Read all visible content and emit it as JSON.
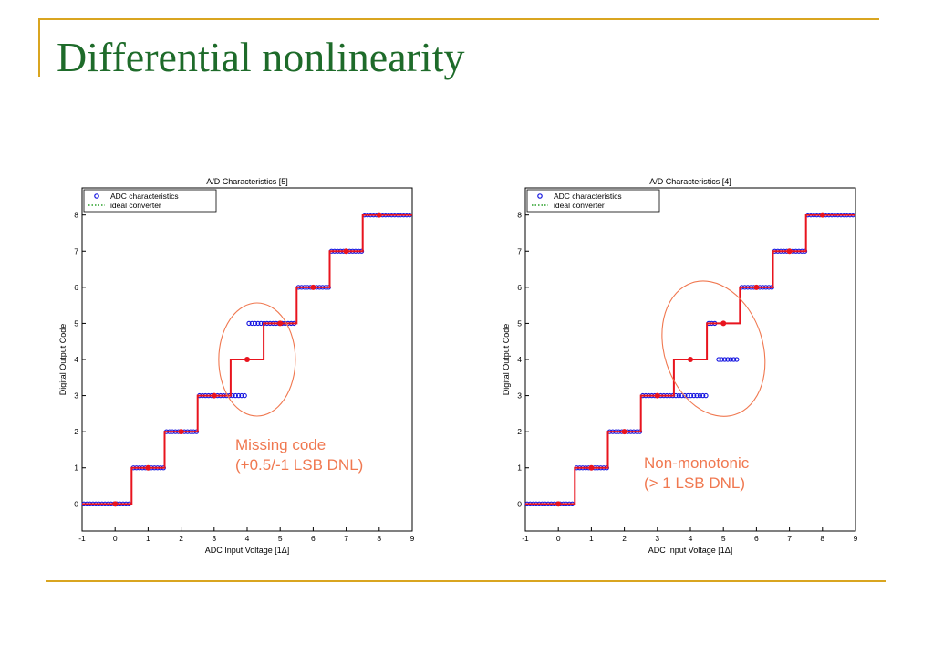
{
  "slide": {
    "title": "Differential nonlinearity"
  },
  "colors": {
    "title": "#1e6b2a",
    "rule": "#d9a520",
    "red": "#e8141e",
    "blue": "#1414e0",
    "green": "#2aa02a",
    "annotation": "#f07850"
  },
  "chart_data": [
    {
      "type": "line",
      "title": "A/D Characteristics [5]",
      "xlabel": "ADC Input Voltage  [1Δ]",
      "ylabel": "Digital Output Code",
      "xlim": [
        -1,
        9
      ],
      "ylim": [
        -0.75,
        8.75
      ],
      "xticks": [
        -1,
        0,
        1,
        2,
        3,
        4,
        5,
        6,
        7,
        8,
        9
      ],
      "yticks": [
        0,
        1,
        2,
        3,
        4,
        5,
        6,
        7,
        8
      ],
      "legend": {
        "placement": "top-left",
        "entries": [
          "ADC characteristics",
          "ideal converter"
        ]
      },
      "series": [
        {
          "name": "ADC characteristics",
          "marker": "o",
          "color": "blue",
          "segments": [
            [
              -1,
              0.5,
              0
            ],
            [
              0.5,
              1.5,
              1
            ],
            [
              1.5,
              2.5,
              2
            ],
            [
              2.5,
              4.0,
              3
            ],
            [
              4.0,
              5.5,
              5
            ],
            [
              5.5,
              6.5,
              6
            ],
            [
              6.5,
              7.5,
              7
            ],
            [
              7.5,
              9,
              8
            ]
          ]
        },
        {
          "name": "ideal converter",
          "color": "red",
          "steps": [
            [
              -1,
              0.5,
              0
            ],
            [
              0.5,
              1.5,
              1
            ],
            [
              1.5,
              2.5,
              2
            ],
            [
              2.5,
              3.5,
              3
            ],
            [
              3.5,
              4.5,
              4
            ],
            [
              4.5,
              5.5,
              5
            ],
            [
              5.5,
              6.5,
              6
            ],
            [
              6.5,
              7.5,
              7
            ],
            [
              7.5,
              9,
              8
            ]
          ],
          "points": [
            [
              0,
              0
            ],
            [
              1,
              1
            ],
            [
              2,
              2
            ],
            [
              3,
              3
            ],
            [
              4,
              4
            ],
            [
              5,
              5
            ],
            [
              6,
              6
            ],
            [
              7,
              7
            ],
            [
              8,
              8
            ]
          ]
        }
      ],
      "annotation": {
        "ellipse_center": [
          4.3,
          4.0
        ],
        "lines": [
          "Missing code",
          "(+0.5/-1 LSB DNL)"
        ]
      }
    },
    {
      "type": "line",
      "title": "A/D Characteristics [4]",
      "xlabel": "ADC Input Voltage  [1Δ]",
      "ylabel": "Digital Output Code",
      "xlim": [
        -1,
        9
      ],
      "ylim": [
        -0.75,
        8.75
      ],
      "xticks": [
        -1,
        0,
        1,
        2,
        3,
        4,
        5,
        6,
        7,
        8,
        9
      ],
      "yticks": [
        0,
        1,
        2,
        3,
        4,
        5,
        6,
        7,
        8
      ],
      "legend": {
        "placement": "top-left",
        "entries": [
          "ADC characteristics",
          "ideal converter"
        ]
      },
      "series": [
        {
          "name": "ADC characteristics",
          "marker": "o",
          "color": "blue",
          "segments": [
            [
              -1,
              0.5,
              0
            ],
            [
              0.5,
              1.5,
              1
            ],
            [
              1.5,
              2.5,
              2
            ],
            [
              2.5,
              4.5,
              3
            ],
            [
              4.5,
              4.8,
              5
            ],
            [
              4.8,
              5.5,
              4
            ],
            [
              5.5,
              6.5,
              6
            ],
            [
              6.5,
              7.5,
              7
            ],
            [
              7.5,
              9,
              8
            ]
          ]
        },
        {
          "name": "ideal converter",
          "color": "red",
          "steps": [
            [
              -1,
              0.5,
              0
            ],
            [
              0.5,
              1.5,
              1
            ],
            [
              1.5,
              2.5,
              2
            ],
            [
              2.5,
              3.5,
              3
            ],
            [
              3.5,
              4.5,
              4
            ],
            [
              4.5,
              5.5,
              5
            ],
            [
              5.5,
              6.5,
              6
            ],
            [
              6.5,
              7.5,
              7
            ],
            [
              7.5,
              9,
              8
            ]
          ],
          "points": [
            [
              0,
              0
            ],
            [
              1,
              1
            ],
            [
              2,
              2
            ],
            [
              3,
              3
            ],
            [
              4,
              4
            ],
            [
              5,
              5
            ],
            [
              6,
              6
            ],
            [
              7,
              7
            ],
            [
              8,
              8
            ]
          ]
        }
      ],
      "annotation": {
        "ellipse_center": [
          4.7,
          4.3
        ],
        "lines": [
          "Non-monotonic",
          "(> 1 LSB DNL)"
        ]
      }
    }
  ]
}
